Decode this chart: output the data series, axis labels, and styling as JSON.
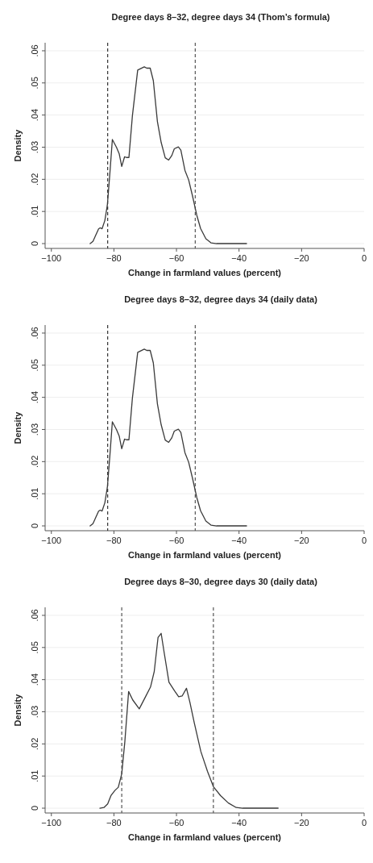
{
  "chart_data": [
    {
      "type": "line",
      "title": "Degree days 8–32, degree days 34 (Thom’s formula)",
      "xlabel": "Change in farmland values (percent)",
      "ylabel": "Density",
      "xlim": [
        -102,
        0
      ],
      "xticks": [
        {
          "value": -100,
          "label": "−100"
        },
        {
          "value": -80,
          "label": "−80"
        },
        {
          "value": -60,
          "label": "−60"
        },
        {
          "value": -40,
          "label": "−40"
        },
        {
          "value": -20,
          "label": "−20"
        },
        {
          "value": 0,
          "label": "0"
        }
      ],
      "ylim": [
        -0.0015,
        0.0625
      ],
      "yticks": [
        {
          "value": 0,
          "label": "0"
        },
        {
          "value": 0.01,
          "label": ".01"
        },
        {
          "value": 0.02,
          "label": ".02"
        },
        {
          "value": 0.03,
          "label": ".03"
        },
        {
          "value": 0.04,
          "label": ".04"
        },
        {
          "value": 0.05,
          "label": ".05"
        },
        {
          "value": 0.06,
          "label": ".06"
        }
      ],
      "grid": "y",
      "line_style": "solid",
      "series": [
        {
          "color": "#3a3a3a",
          "x": [
            -87.6,
            -86.7,
            -84.9,
            -84.4,
            -83.8,
            -82.9,
            -82.1,
            -81.3,
            -80.5,
            -79.2,
            -78.3,
            -77.5,
            -76.6,
            -76.0,
            -75.2,
            -74.1,
            -72.4,
            -70.3,
            -69.5,
            -68.4,
            -67.4,
            -66.1,
            -64.9,
            -63.6,
            -62.5,
            -61.5,
            -60.7,
            -59.4,
            -58.6,
            -57.3,
            -56.1,
            -54.8,
            -53.5,
            -52.3,
            -50.6,
            -48.9,
            -47.2,
            -37.6
          ],
          "values": [
            0,
            0.0007,
            0.0046,
            0.0049,
            0.0046,
            0.0072,
            0.012,
            0.0218,
            0.0324,
            0.03,
            0.0279,
            0.024,
            0.027,
            0.0268,
            0.0268,
            0.0397,
            0.054,
            0.055,
            0.0546,
            0.0546,
            0.0507,
            0.038,
            0.0315,
            0.0267,
            0.026,
            0.0274,
            0.0295,
            0.0301,
            0.0291,
            0.0228,
            0.0198,
            0.0145,
            0.0088,
            0.0047,
            0.0015,
            0.0002,
            0,
            0
          ]
        }
      ],
      "ref_lines": [
        {
          "axis": "x",
          "value": -82,
          "color": "#333333",
          "line_style": "dashed"
        },
        {
          "axis": "x",
          "value": -54,
          "color": "#555555",
          "line_style": "dashed"
        }
      ]
    },
    {
      "type": "line",
      "title": "Degree days 8–32, degree days 34 (daily data)",
      "xlabel": "Change in farmland values (percent)",
      "ylabel": "Density",
      "xlim": [
        -102,
        0
      ],
      "xticks": [
        {
          "value": -100,
          "label": "−100"
        },
        {
          "value": -80,
          "label": "−80"
        },
        {
          "value": -60,
          "label": "−60"
        },
        {
          "value": -40,
          "label": "−40"
        },
        {
          "value": -20,
          "label": "−20"
        },
        {
          "value": 0,
          "label": "0"
        }
      ],
      "ylim": [
        -0.0015,
        0.0625
      ],
      "yticks": [
        {
          "value": 0,
          "label": "0"
        },
        {
          "value": 0.01,
          "label": ".01"
        },
        {
          "value": 0.02,
          "label": ".02"
        },
        {
          "value": 0.03,
          "label": ".03"
        },
        {
          "value": 0.04,
          "label": ".04"
        },
        {
          "value": 0.05,
          "label": ".05"
        },
        {
          "value": 0.06,
          "label": ".06"
        }
      ],
      "grid": "y",
      "line_style": "solid",
      "series": [
        {
          "color": "#3a3a3a",
          "x": [
            -87.6,
            -86.7,
            -84.9,
            -84.4,
            -83.8,
            -82.9,
            -82.1,
            -81.3,
            -80.5,
            -79.2,
            -78.3,
            -77.5,
            -76.6,
            -76.0,
            -75.2,
            -74.1,
            -72.4,
            -70.3,
            -69.5,
            -68.4,
            -67.4,
            -66.1,
            -64.9,
            -63.6,
            -62.5,
            -61.5,
            -60.7,
            -59.4,
            -58.6,
            -57.3,
            -56.1,
            -54.8,
            -53.5,
            -52.3,
            -50.6,
            -48.9,
            -47.2,
            -37.6
          ],
          "values": [
            0,
            0.0007,
            0.0046,
            0.0049,
            0.0046,
            0.0072,
            0.012,
            0.0218,
            0.0324,
            0.03,
            0.0279,
            0.024,
            0.027,
            0.0268,
            0.0268,
            0.0397,
            0.054,
            0.055,
            0.0546,
            0.0546,
            0.0507,
            0.038,
            0.0315,
            0.0267,
            0.026,
            0.0274,
            0.0295,
            0.0301,
            0.0291,
            0.0228,
            0.0198,
            0.0145,
            0.0088,
            0.0047,
            0.0015,
            0.0002,
            0,
            0
          ]
        }
      ],
      "ref_lines": [
        {
          "axis": "x",
          "value": -82,
          "color": "#333333",
          "line_style": "dashed"
        },
        {
          "axis": "x",
          "value": -54,
          "color": "#555555",
          "line_style": "dashed"
        }
      ]
    },
    {
      "type": "line",
      "title": "Degree days 8–30, degree days 30 (daily data)",
      "xlabel": "Change in farmland values (percent)",
      "ylabel": "Density",
      "xlim": [
        -102,
        0
      ],
      "xticks": [
        {
          "value": -100,
          "label": "−100"
        },
        {
          "value": -80,
          "label": "−80"
        },
        {
          "value": -60,
          "label": "−60"
        },
        {
          "value": -40,
          "label": "−40"
        },
        {
          "value": -20,
          "label": "−20"
        },
        {
          "value": 0,
          "label": "0"
        }
      ],
      "ylim": [
        -0.0015,
        0.0625
      ],
      "yticks": [
        {
          "value": 0,
          "label": "0"
        },
        {
          "value": 0.01,
          "label": ".01"
        },
        {
          "value": 0.02,
          "label": ".02"
        },
        {
          "value": 0.03,
          "label": ".03"
        },
        {
          "value": 0.04,
          "label": ".04"
        },
        {
          "value": 0.05,
          "label": ".05"
        },
        {
          "value": 0.06,
          "label": ".06"
        }
      ],
      "grid": "y",
      "line_style": "solid",
      "series": [
        {
          "color": "#3a3a3a",
          "x": [
            -84.5,
            -83.2,
            -82.0,
            -80.9,
            -79.7,
            -78.6,
            -77.5,
            -76.5,
            -75.3,
            -74.0,
            -71.9,
            -70.2,
            -68.3,
            -67.1,
            -65.9,
            -64.9,
            -63.9,
            -62.4,
            -60.6,
            -59.3,
            -58.2,
            -56.8,
            -55.7,
            -54.3,
            -52.2,
            -50.1,
            -48.2,
            -45.9,
            -43.4,
            -40.9,
            -38.8,
            -27.5
          ],
          "values": [
            0,
            0.0002,
            0.0013,
            0.004,
            0.0055,
            0.0065,
            0.0107,
            0.0208,
            0.0363,
            0.0337,
            0.0309,
            0.0341,
            0.0377,
            0.0426,
            0.0531,
            0.0544,
            0.0482,
            0.0392,
            0.0365,
            0.0347,
            0.0349,
            0.0373,
            0.0329,
            0.0265,
            0.0176,
            0.0115,
            0.0067,
            0.0039,
            0.0016,
            0.0002,
            0,
            0
          ]
        }
      ],
      "ref_lines": [
        {
          "axis": "x",
          "value": -77.5,
          "color": "#555555",
          "line_style": "dashed"
        },
        {
          "axis": "x",
          "value": -48.2,
          "color": "#555555",
          "line_style": "dashed"
        }
      ]
    }
  ]
}
